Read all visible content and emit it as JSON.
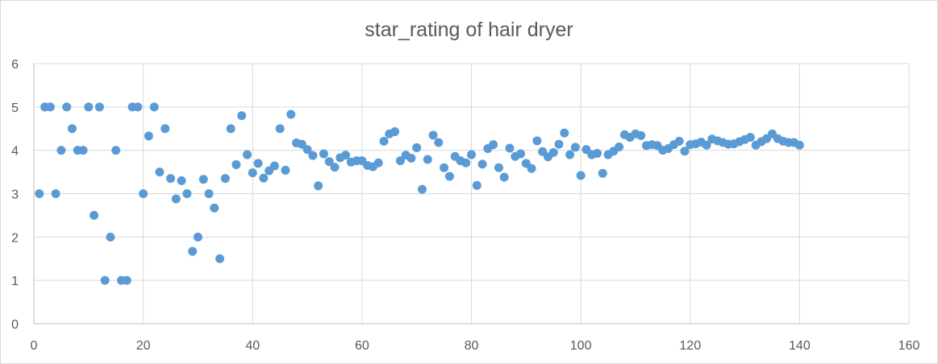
{
  "chart_data": {
    "type": "scatter",
    "title": "star_rating of hair dryer",
    "xlabel": "",
    "ylabel": "",
    "xlim": [
      0,
      160
    ],
    "ylim": [
      0,
      6
    ],
    "x_ticks": [
      "0",
      "20",
      "40",
      "60",
      "80",
      "100",
      "120",
      "140",
      "160"
    ],
    "y_ticks": [
      "0",
      "1",
      "2",
      "3",
      "4",
      "5",
      "6"
    ],
    "grid": true,
    "legend": "none",
    "marker_color": "#5b9bd5",
    "x": [
      1,
      2,
      3,
      4,
      5,
      6,
      7,
      8,
      9,
      10,
      11,
      12,
      13,
      14,
      15,
      16,
      17,
      18,
      19,
      20,
      21,
      22,
      23,
      24,
      25,
      26,
      27,
      28,
      29,
      30,
      31,
      32,
      33,
      34,
      35,
      36,
      37,
      38,
      39,
      40,
      41,
      42,
      43,
      44,
      45,
      46,
      47,
      48,
      49,
      50,
      51,
      52,
      53,
      54,
      55,
      56,
      57,
      58,
      59,
      60,
      61,
      62,
      63,
      64,
      65,
      66,
      67,
      68,
      69,
      70,
      71,
      72,
      73,
      74,
      75,
      76,
      77,
      78,
      79,
      80,
      81,
      82,
      83,
      84,
      85,
      86,
      87,
      88,
      89,
      90,
      91,
      92,
      93,
      94,
      95,
      96,
      97,
      98,
      99,
      100,
      101,
      102,
      103,
      104,
      105,
      106,
      107,
      108,
      109,
      110,
      111,
      112,
      113,
      114,
      115,
      116,
      117,
      118,
      119,
      120,
      121,
      122,
      123,
      124,
      125,
      126,
      127,
      128,
      129,
      130,
      131,
      132,
      133,
      134,
      135,
      136,
      137,
      138,
      139,
      140
    ],
    "y": [
      3.0,
      5.0,
      5.0,
      3.0,
      4.0,
      5.0,
      4.5,
      4.0,
      4.0,
      5.0,
      2.5,
      5.0,
      1.0,
      2.0,
      4.0,
      1.0,
      1.0,
      5.0,
      5.0,
      3.0,
      4.33,
      5.0,
      3.5,
      4.5,
      3.35,
      2.88,
      3.3,
      3.0,
      1.67,
      2.0,
      3.33,
      3.0,
      2.67,
      1.5,
      3.35,
      4.5,
      3.67,
      4.8,
      3.9,
      3.48,
      3.7,
      3.36,
      3.53,
      3.64,
      4.5,
      3.54,
      4.83,
      4.17,
      4.14,
      4.02,
      3.88,
      3.18,
      3.92,
      3.74,
      3.61,
      3.83,
      3.89,
      3.73,
      3.76,
      3.76,
      3.65,
      3.62,
      3.71,
      4.21,
      4.38,
      4.43,
      3.76,
      3.89,
      3.82,
      4.06,
      3.1,
      3.79,
      4.35,
      4.18,
      3.6,
      3.4,
      3.86,
      3.76,
      3.71,
      3.9,
      3.19,
      3.68,
      4.04,
      4.13,
      3.6,
      3.38,
      4.05,
      3.86,
      3.92,
      3.7,
      3.58,
      4.22,
      3.97,
      3.85,
      3.95,
      4.14,
      4.4,
      3.9,
      4.07,
      3.42,
      4.02,
      3.9,
      3.93,
      3.47,
      3.9,
      3.98,
      4.08,
      4.36,
      4.3,
      4.38,
      4.34,
      4.11,
      4.13,
      4.11,
      4.0,
      4.04,
      4.13,
      4.21,
      3.98,
      4.13,
      4.15,
      4.19,
      4.12,
      4.26,
      4.22,
      4.18,
      4.14,
      4.15,
      4.2,
      4.25,
      4.3,
      4.12,
      4.2,
      4.27,
      4.38,
      4.27,
      4.21,
      4.18,
      4.18,
      4.12
    ]
  }
}
